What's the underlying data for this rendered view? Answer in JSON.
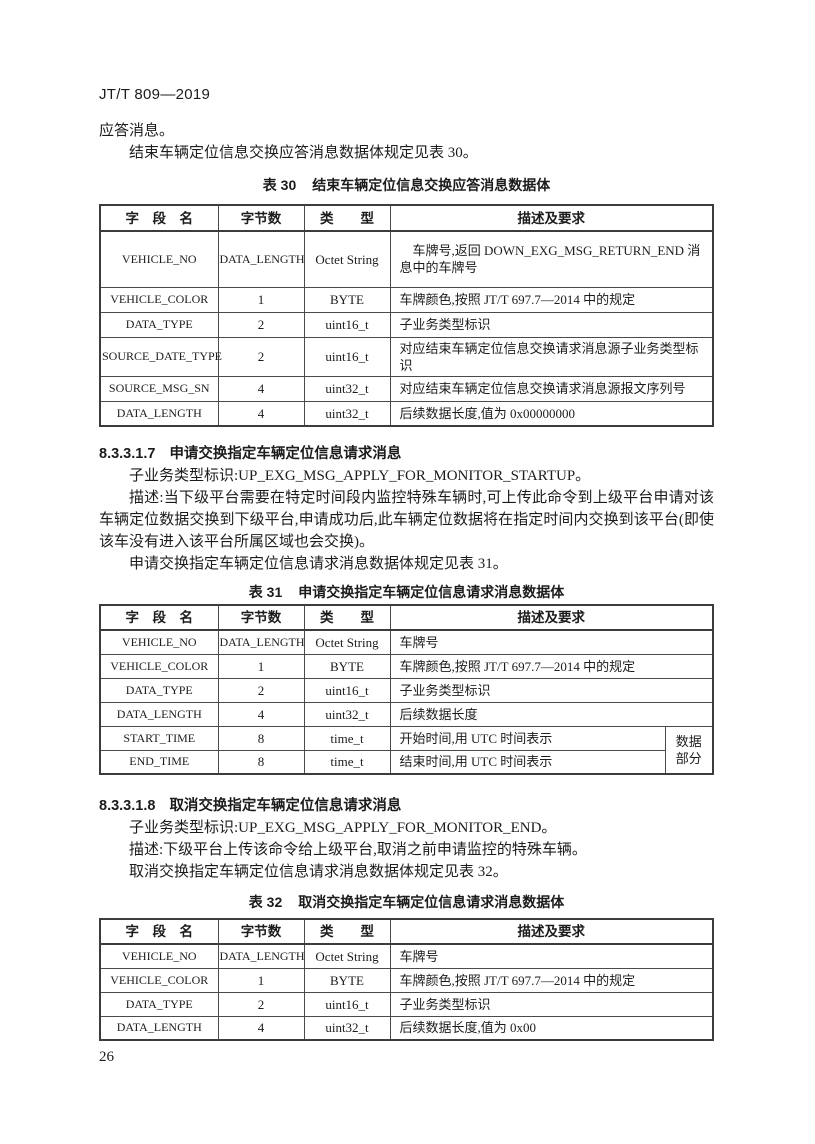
{
  "page": {
    "doc_code": "JT/T 809—2019",
    "page_number": "26"
  },
  "intro": {
    "line1": "应答消息。",
    "line2": "结束车辆定位信息交换应答消息数据体规定见表 30。"
  },
  "th": {
    "field": "字　段　名",
    "bytes": "字节数",
    "type": "类　　型",
    "desc": "描述及要求"
  },
  "table30": {
    "label": "表 30",
    "title": "结束车辆定位信息交换应答消息数据体",
    "rows": [
      {
        "field": "VEHICLE_NO",
        "bytes": "DATA_LENGTH",
        "type": "Octet String",
        "desc": "车牌号,返回 DOWN_EXG_MSG_RETURN_END 消息中的车牌号"
      },
      {
        "field": "VEHICLE_COLOR",
        "bytes": "1",
        "type": "BYTE",
        "desc": "车牌颜色,按照 JT/T 697.7—2014 中的规定"
      },
      {
        "field": "DATA_TYPE",
        "bytes": "2",
        "type": "uint16_t",
        "desc": "子业务类型标识"
      },
      {
        "field": "SOURCE_DATE_TYPE",
        "bytes": "2",
        "type": "uint16_t",
        "desc": "对应结束车辆定位信息交换请求消息源子业务类型标识"
      },
      {
        "field": "SOURCE_MSG_SN",
        "bytes": "4",
        "type": "uint32_t",
        "desc": "对应结束车辆定位信息交换请求消息源报文序列号"
      },
      {
        "field": "DATA_LENGTH",
        "bytes": "4",
        "type": "uint32_t",
        "desc": "后续数据长度,值为 0x00000000"
      }
    ]
  },
  "section7": {
    "number": "8.3.3.1.7",
    "title": "申请交换指定车辆定位信息请求消息",
    "line_id": "子业务类型标识:UP_EXG_MSG_APPLY_FOR_MONITOR_STARTUP。",
    "line_desc": "描述:当下级平台需要在特定时间段内监控特殊车辆时,可上传此命令到上级平台申请对该车辆定位数据交换到下级平台,申请成功后,此车辆定位数据将在指定时间内交换到该平台(即使该车没有进入该平台所属区域也会交换)。",
    "line_ref": "申请交换指定车辆定位信息请求消息数据体规定见表 31。"
  },
  "table31": {
    "label": "表 31",
    "title": "申请交换指定车辆定位信息请求消息数据体",
    "group_label": "数据部分",
    "rows": [
      {
        "field": "VEHICLE_NO",
        "bytes": "DATA_LENGTH",
        "type": "Octet String",
        "desc": "车牌号"
      },
      {
        "field": "VEHICLE_COLOR",
        "bytes": "1",
        "type": "BYTE",
        "desc": "车牌颜色,按照 JT/T 697.7—2014 中的规定"
      },
      {
        "field": "DATA_TYPE",
        "bytes": "2",
        "type": "uint16_t",
        "desc": "子业务类型标识"
      },
      {
        "field": "DATA_LENGTH",
        "bytes": "4",
        "type": "uint32_t",
        "desc": "后续数据长度"
      },
      {
        "field": "START_TIME",
        "bytes": "8",
        "type": "time_t",
        "desc": "开始时间,用 UTC 时间表示"
      },
      {
        "field": "END_TIME",
        "bytes": "8",
        "type": "time_t",
        "desc": "结束时间,用 UTC 时间表示"
      }
    ]
  },
  "section8": {
    "number": "8.3.3.1.8",
    "title": "取消交换指定车辆定位信息请求消息",
    "line_id": "子业务类型标识:UP_EXG_MSG_APPLY_FOR_MONITOR_END。",
    "line_desc": "描述:下级平台上传该命令给上级平台,取消之前申请监控的特殊车辆。",
    "line_ref": "取消交换指定车辆定位信息请求消息数据体规定见表 32。"
  },
  "table32": {
    "label": "表 32",
    "title": "取消交换指定车辆定位信息请求消息数据体",
    "rows": [
      {
        "field": "VEHICLE_NO",
        "bytes": "DATA_LENGTH",
        "type": "Octet String",
        "desc": "车牌号"
      },
      {
        "field": "VEHICLE_COLOR",
        "bytes": "1",
        "type": "BYTE",
        "desc": "车牌颜色,按照 JT/T 697.7—2014 中的规定"
      },
      {
        "field": "DATA_TYPE",
        "bytes": "2",
        "type": "uint16_t",
        "desc": "子业务类型标识"
      },
      {
        "field": "DATA_LENGTH",
        "bytes": "4",
        "type": "uint32_t",
        "desc": "后续数据长度,值为 0x00"
      }
    ]
  }
}
